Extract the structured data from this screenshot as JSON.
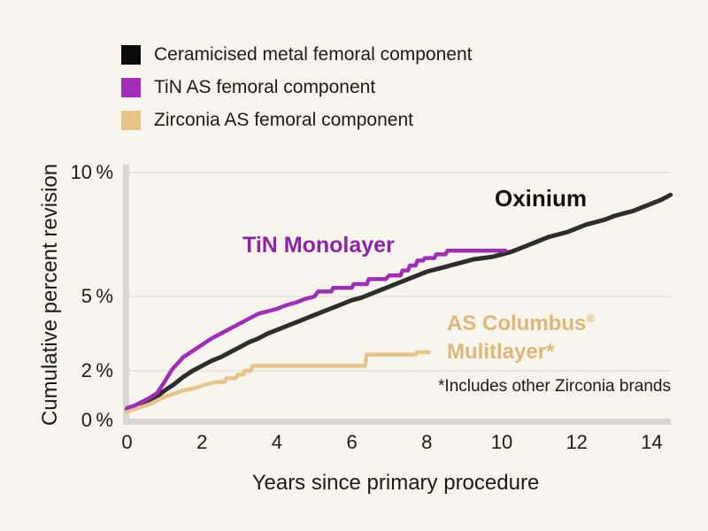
{
  "colors": {
    "background": "#f8f5ec",
    "axis_bar": "#d8d7d2",
    "gridline": "#e6e3da",
    "text": "#1b1b1b",
    "oxinium_line": "#2d2d2b",
    "tin_line": "#a02db6",
    "tin_text": "#8d23a6",
    "zirconia_line": "#e8c38a",
    "zirconia_text": "#dfb67a"
  },
  "legend": {
    "items": [
      {
        "label": "Ceramicised metal femoral component",
        "color": "#0b0b0b"
      },
      {
        "label": "TiN AS femoral component",
        "color": "#a42cb8"
      },
      {
        "label": "Zirconia AS femoral component",
        "color": "#e8c38a"
      }
    ]
  },
  "labels": {
    "oxinium": "Oxinium",
    "tin": "TiN Monolayer",
    "columbus_line1": "AS Columbus",
    "columbus_reg": "®",
    "columbus_line2": "Mulitlayer*"
  },
  "chart_data": {
    "type": "line",
    "title": "",
    "xlabel": "Years since primary procedure",
    "ylabel": "Cumulative percent revision",
    "xlim": [
      0,
      14.5
    ],
    "ylim": [
      0,
      10
    ],
    "grid": "horizontal only",
    "legend_position": "top-left above plot",
    "x_ticks": [
      {
        "value": 0,
        "label": "0"
      },
      {
        "value": 2,
        "label": "2"
      },
      {
        "value": 4,
        "label": "4"
      },
      {
        "value": 6,
        "label": "6"
      },
      {
        "value": 8,
        "label": "8"
      },
      {
        "value": 10,
        "label": "10"
      },
      {
        "value": 12,
        "label": "12"
      },
      {
        "value": 14,
        "label": "14"
      }
    ],
    "y_ticks": [
      {
        "value": 0,
        "label": "0 %"
      },
      {
        "value": 2,
        "label": "2 %"
      },
      {
        "value": 5,
        "label": "5 %"
      },
      {
        "value": 10,
        "label": "10 %"
      }
    ],
    "gridlines_at": [
      2,
      5,
      10
    ],
    "footnote": "*Includes other Zirconia brands",
    "series": [
      {
        "name": "Ceramicised metal femoral component",
        "annotation": "Oxinium",
        "color": "#2d2d2b",
        "line_width": 5,
        "points": [
          [
            0,
            0.45
          ],
          [
            0.25,
            0.55
          ],
          [
            0.5,
            0.7
          ],
          [
            0.75,
            0.9
          ],
          [
            1,
            1.2
          ],
          [
            1.25,
            1.45
          ],
          [
            1.5,
            1.75
          ],
          [
            1.75,
            2.0
          ],
          [
            2,
            2.2
          ],
          [
            2.25,
            2.4
          ],
          [
            2.5,
            2.55
          ],
          [
            2.75,
            2.75
          ],
          [
            3,
            2.95
          ],
          [
            3.25,
            3.15
          ],
          [
            3.5,
            3.3
          ],
          [
            3.75,
            3.5
          ],
          [
            4,
            3.65
          ],
          [
            4.25,
            3.8
          ],
          [
            4.5,
            3.95
          ],
          [
            4.75,
            4.1
          ],
          [
            5,
            4.25
          ],
          [
            5.25,
            4.4
          ],
          [
            5.5,
            4.55
          ],
          [
            5.75,
            4.7
          ],
          [
            6,
            4.85
          ],
          [
            6.25,
            4.95
          ],
          [
            6.5,
            5.1
          ],
          [
            6.75,
            5.25
          ],
          [
            7,
            5.4
          ],
          [
            7.25,
            5.55
          ],
          [
            7.5,
            5.7
          ],
          [
            7.75,
            5.85
          ],
          [
            8,
            6.0
          ],
          [
            8.25,
            6.1
          ],
          [
            8.5,
            6.2
          ],
          [
            8.75,
            6.3
          ],
          [
            9,
            6.4
          ],
          [
            9.25,
            6.5
          ],
          [
            9.5,
            6.55
          ],
          [
            9.75,
            6.6
          ],
          [
            10,
            6.7
          ],
          [
            10.25,
            6.8
          ],
          [
            10.5,
            6.95
          ],
          [
            10.75,
            7.1
          ],
          [
            11,
            7.25
          ],
          [
            11.25,
            7.4
          ],
          [
            11.5,
            7.5
          ],
          [
            11.75,
            7.6
          ],
          [
            12,
            7.75
          ],
          [
            12.25,
            7.9
          ],
          [
            12.5,
            8.0
          ],
          [
            12.75,
            8.1
          ],
          [
            13,
            8.25
          ],
          [
            13.25,
            8.35
          ],
          [
            13.5,
            8.45
          ],
          [
            13.75,
            8.6
          ],
          [
            14,
            8.75
          ],
          [
            14.25,
            8.9
          ],
          [
            14.5,
            9.1
          ]
        ]
      },
      {
        "name": "TiN AS femoral component",
        "annotation": "TiN Monolayer",
        "color": "#a02db6",
        "line_width": 4.5,
        "points": [
          [
            0,
            0.5
          ],
          [
            0.2,
            0.6
          ],
          [
            0.4,
            0.75
          ],
          [
            0.6,
            0.9
          ],
          [
            0.8,
            1.1
          ],
          [
            1.0,
            1.55
          ],
          [
            1.1,
            1.8
          ],
          [
            1.2,
            2.05
          ],
          [
            1.35,
            2.3
          ],
          [
            1.5,
            2.55
          ],
          [
            1.75,
            2.8
          ],
          [
            2.0,
            3.05
          ],
          [
            2.25,
            3.3
          ],
          [
            2.5,
            3.5
          ],
          [
            2.75,
            3.7
          ],
          [
            3.0,
            3.9
          ],
          [
            3.25,
            4.1
          ],
          [
            3.5,
            4.3
          ],
          [
            3.75,
            4.4
          ],
          [
            4.0,
            4.5
          ],
          [
            4.25,
            4.65
          ],
          [
            4.5,
            4.75
          ],
          [
            4.75,
            4.9
          ],
          [
            5.0,
            5.0
          ],
          [
            5.1,
            5.2
          ],
          [
            5.45,
            5.2
          ],
          [
            5.5,
            5.35
          ],
          [
            6.0,
            5.35
          ],
          [
            6.05,
            5.5
          ],
          [
            6.4,
            5.5
          ],
          [
            6.45,
            5.7
          ],
          [
            6.9,
            5.7
          ],
          [
            7.0,
            5.85
          ],
          [
            7.3,
            5.85
          ],
          [
            7.35,
            6.05
          ],
          [
            7.5,
            6.05
          ],
          [
            7.55,
            6.25
          ],
          [
            7.7,
            6.25
          ],
          [
            7.75,
            6.45
          ],
          [
            7.9,
            6.45
          ],
          [
            7.95,
            6.55
          ],
          [
            8.2,
            6.55
          ],
          [
            8.25,
            6.7
          ],
          [
            8.5,
            6.7
          ],
          [
            8.55,
            6.85
          ],
          [
            10.1,
            6.85
          ]
        ]
      },
      {
        "name": "Zirconia AS femoral component",
        "annotation": "AS Columbus® Mulitlayer*",
        "color": "#e8c38a",
        "line_width": 4.5,
        "points": [
          [
            0,
            0.35
          ],
          [
            0.3,
            0.5
          ],
          [
            0.6,
            0.65
          ],
          [
            0.8,
            0.8
          ],
          [
            1.0,
            0.95
          ],
          [
            1.3,
            1.1
          ],
          [
            1.5,
            1.2
          ],
          [
            1.8,
            1.3
          ],
          [
            2.1,
            1.45
          ],
          [
            2.4,
            1.55
          ],
          [
            2.6,
            1.55
          ],
          [
            2.65,
            1.7
          ],
          [
            2.9,
            1.7
          ],
          [
            2.95,
            1.85
          ],
          [
            3.1,
            1.85
          ],
          [
            3.15,
            2.0
          ],
          [
            3.3,
            2.0
          ],
          [
            3.35,
            2.2
          ],
          [
            6.35,
            2.2
          ],
          [
            6.4,
            2.65
          ],
          [
            7.7,
            2.65
          ],
          [
            7.75,
            2.75
          ],
          [
            8.05,
            2.75
          ]
        ]
      }
    ]
  }
}
